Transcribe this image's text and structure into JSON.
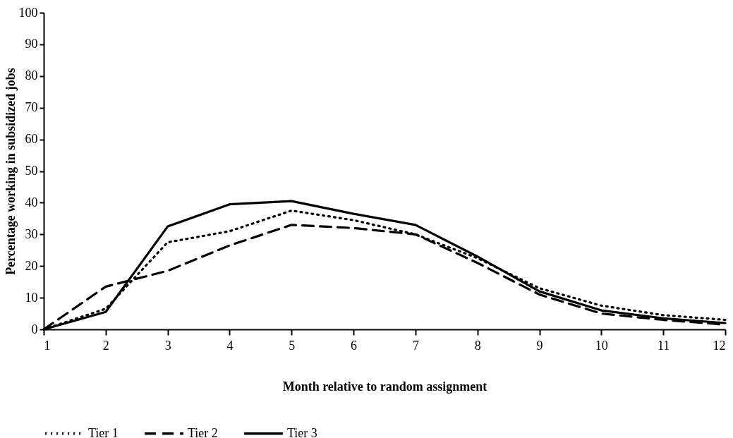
{
  "chart_data": {
    "type": "line",
    "xlabel": "Month relative to random assignment",
    "ylabel": "Percentage working in subsidized jobs",
    "x": [
      1,
      2,
      3,
      4,
      5,
      6,
      7,
      8,
      9,
      10,
      11,
      12
    ],
    "series": [
      {
        "name": "Tier 1",
        "color": "#000000",
        "line_style": "dotted",
        "values": [
          0,
          6.5,
          27.5,
          31,
          37.5,
          34.5,
          30,
          22.5,
          13,
          7.5,
          4.5,
          3
        ]
      },
      {
        "name": "Tier 2",
        "color": "#000000",
        "line_style": "dashed",
        "values": [
          0,
          13.5,
          18.5,
          26.5,
          33,
          32,
          30,
          21,
          11,
          5,
          3,
          1.5
        ]
      },
      {
        "name": "Tier 3",
        "color": "#000000",
        "line_style": "solid",
        "values": [
          0,
          5.5,
          32.5,
          39.5,
          40.5,
          36.5,
          33,
          23,
          12,
          6,
          3.5,
          2
        ]
      }
    ],
    "xlim": [
      1,
      12
    ],
    "xticks": [
      1,
      2,
      3,
      4,
      5,
      6,
      7,
      8,
      9,
      10,
      11,
      12
    ],
    "ylim": [
      0,
      100
    ],
    "yticks": [
      0,
      10,
      20,
      30,
      40,
      50,
      60,
      70,
      80,
      90,
      100
    ],
    "grid": false,
    "legend": "bottom",
    "marker": "none"
  }
}
